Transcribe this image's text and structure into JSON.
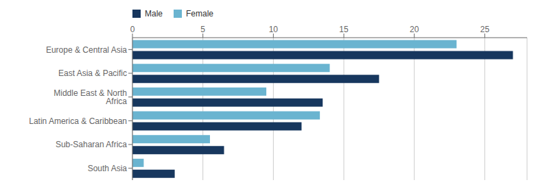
{
  "chart_data": {
    "type": "bar",
    "orientation": "horizontal",
    "categories": [
      "Europe & Central Asia",
      "East Asia & Pacific",
      "Middle East & North Africa",
      "Latin America & Caribbean",
      "Sub-Saharan Africa",
      "South Asia"
    ],
    "series": [
      {
        "name": "Male",
        "color": "#17375e",
        "values": [
          27.0,
          17.5,
          13.5,
          12.0,
          6.5,
          3.0
        ]
      },
      {
        "name": "Female",
        "color": "#6ab4d0",
        "values": [
          23.0,
          14.0,
          9.5,
          13.3,
          5.5,
          0.8
        ]
      }
    ],
    "xlim": [
      0,
      28
    ],
    "xticks": [
      0,
      5,
      10,
      15,
      20,
      25
    ],
    "grid": true,
    "legend": "upper left"
  }
}
